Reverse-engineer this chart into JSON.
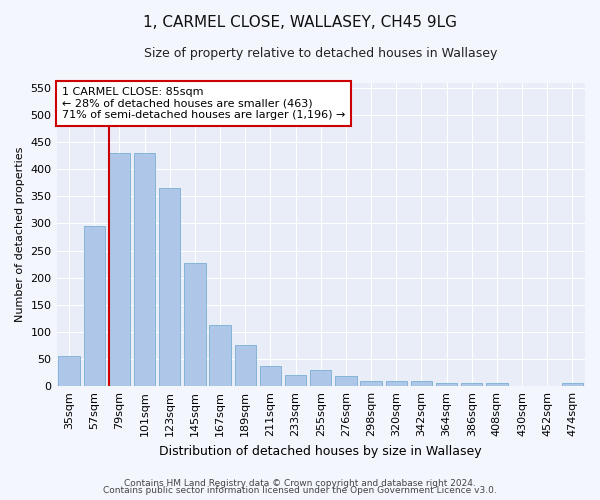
{
  "title": "1, CARMEL CLOSE, WALLASEY, CH45 9LG",
  "subtitle": "Size of property relative to detached houses in Wallasey",
  "xlabel": "Distribution of detached houses by size in Wallasey",
  "ylabel": "Number of detached properties",
  "categories": [
    "35sqm",
    "57sqm",
    "79sqm",
    "101sqm",
    "123sqm",
    "145sqm",
    "167sqm",
    "189sqm",
    "211sqm",
    "233sqm",
    "255sqm",
    "276sqm",
    "298sqm",
    "320sqm",
    "342sqm",
    "364sqm",
    "386sqm",
    "408sqm",
    "430sqm",
    "452sqm",
    "474sqm"
  ],
  "values": [
    55,
    295,
    430,
    430,
    365,
    228,
    113,
    76,
    38,
    20,
    29,
    18,
    9,
    9,
    9,
    5,
    5,
    6,
    0,
    0,
    5
  ],
  "bar_color": "#aec6e8",
  "bar_edgecolor": "#7aafd4",
  "vline_x_index": 2,
  "vline_color": "#cc0000",
  "annotation_text": "1 CARMEL CLOSE: 85sqm\n← 28% of detached houses are smaller (463)\n71% of semi-detached houses are larger (1,196) →",
  "annotation_box_color": "#ffffff",
  "annotation_box_edgecolor": "#cc0000",
  "ylim": [
    0,
    560
  ],
  "yticks": [
    0,
    50,
    100,
    150,
    200,
    250,
    300,
    350,
    400,
    450,
    500,
    550
  ],
  "footer_line1": "Contains HM Land Registry data © Crown copyright and database right 2024.",
  "footer_line2": "Contains public sector information licensed under the Open Government Licence v3.0.",
  "bg_color": "#f4f6fd",
  "plot_bg_color": "#e8edf8",
  "grid_color": "#ffffff",
  "title_fontsize": 11,
  "subtitle_fontsize": 9,
  "ylabel_fontsize": 8,
  "xlabel_fontsize": 9,
  "tick_fontsize": 8,
  "footer_fontsize": 6.5
}
